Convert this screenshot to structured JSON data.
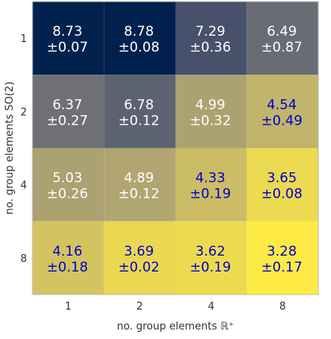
{
  "chart_data": {
    "type": "heatmap",
    "title": "",
    "xlabel": "no. group elements ℝ⁺",
    "ylabel": "no. group elements SO(2)",
    "x_categories": [
      "1",
      "2",
      "4",
      "8"
    ],
    "y_categories": [
      "1",
      "2",
      "4",
      "8"
    ],
    "cells": [
      [
        {
          "mean": "8.73",
          "std": "±0.07"
        },
        {
          "mean": "8.78",
          "std": "±0.08"
        },
        {
          "mean": "7.29",
          "std": "±0.36"
        },
        {
          "mean": "6.49",
          "std": "±0.87"
        }
      ],
      [
        {
          "mean": "6.37",
          "std": "±0.27"
        },
        {
          "mean": "6.78",
          "std": "±0.12"
        },
        {
          "mean": "4.99",
          "std": "±0.32"
        },
        {
          "mean": "4.54",
          "std": "±0.49"
        }
      ],
      [
        {
          "mean": "5.03",
          "std": "±0.26"
        },
        {
          "mean": "4.89",
          "std": "±0.12"
        },
        {
          "mean": "4.33",
          "std": "±0.19"
        },
        {
          "mean": "3.65",
          "std": "±0.08"
        }
      ],
      [
        {
          "mean": "4.16",
          "std": "±0.18"
        },
        {
          "mean": "3.69",
          "std": "±0.02"
        },
        {
          "mean": "3.62",
          "std": "±0.19"
        },
        {
          "mean": "3.28",
          "std": "±0.17"
        }
      ]
    ],
    "colormap": "cividis",
    "value_range": [
      3.28,
      8.78
    ],
    "colors": {
      "text_light": "#ffffff",
      "text_dark": "#0000cc",
      "axis_text": "#333333"
    }
  }
}
